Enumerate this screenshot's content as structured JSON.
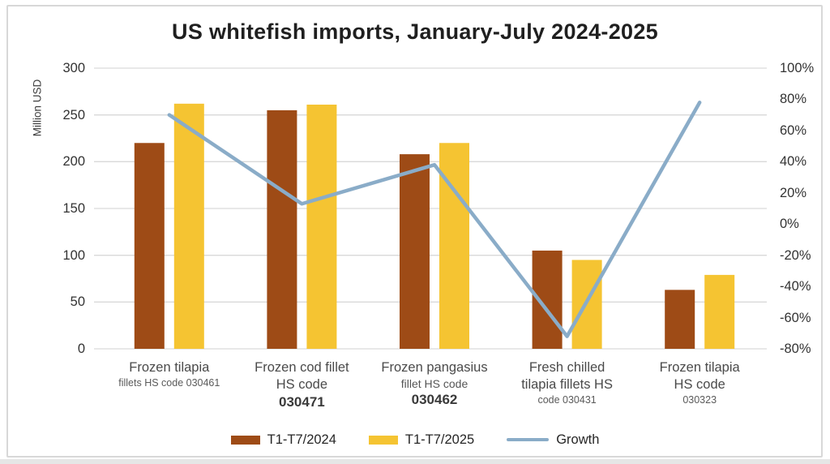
{
  "chart_data": {
    "type": "combo-bar-line",
    "title": "US whitefish imports, January-July 2024-2025",
    "left_axis": {
      "label": "Million USD",
      "min": 0,
      "max": 300,
      "tick_step": 50
    },
    "right_axis": {
      "min": -80,
      "max": 100,
      "tick_step": 20,
      "tick_suffix": "%"
    },
    "grid": true,
    "legend_position": "bottom",
    "categories": [
      {
        "lines": [
          {
            "text": "Frozen tilapia",
            "style": "lg"
          },
          {
            "text": "fillets HS code 030461",
            "style": "sm"
          }
        ]
      },
      {
        "lines": [
          {
            "text": "Frozen cod fillet",
            "style": "lg"
          },
          {
            "text": "HS code",
            "style": "lg"
          },
          {
            "text": "030471",
            "style": "lgb"
          }
        ]
      },
      {
        "lines": [
          {
            "text": "Frozen pangasius",
            "style": "lg"
          },
          {
            "text": "fillet HS code",
            "style": "md"
          },
          {
            "text": "030462",
            "style": "lgb"
          }
        ]
      },
      {
        "lines": [
          {
            "text": "Fresh chilled",
            "style": "lg"
          },
          {
            "text": "tilapia fillets HS",
            "style": "lg"
          },
          {
            "text": "code 030431",
            "style": "sm"
          }
        ]
      },
      {
        "lines": [
          {
            "text": "Frozen tilapia",
            "style": "lg"
          },
          {
            "text": "HS code",
            "style": "lg"
          },
          {
            "text": "030323",
            "style": "sm"
          }
        ]
      }
    ],
    "series": [
      {
        "name": "T1-T7/2024",
        "type": "bar",
        "axis": "left",
        "color": "#9E4B16",
        "values": [
          220,
          255,
          208,
          105,
          63
        ]
      },
      {
        "name": "T1-T7/2025",
        "type": "bar",
        "axis": "left",
        "color": "#F5C432",
        "values": [
          262,
          261,
          220,
          95,
          79
        ]
      },
      {
        "name": "Growth",
        "type": "line",
        "axis": "right",
        "color": "#8AACC8",
        "values": [
          70,
          13,
          38,
          -72,
          78
        ]
      }
    ],
    "colors": {
      "grid": "#d9d9d9",
      "frame_border": "#d8d8d8"
    }
  }
}
